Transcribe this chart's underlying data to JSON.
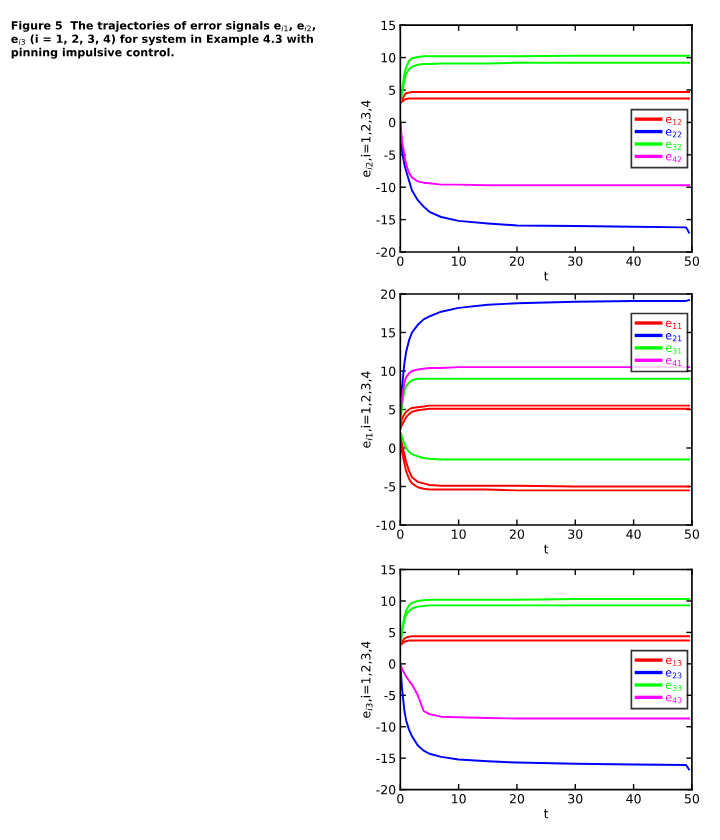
{
  "chart_data": [
    {
      "type": "line",
      "title": "Figure 5  The trajectories of error signals e$_{i1}$, e$_{i2}$,\ne$_{i3}$ (i = 1, 2, 3, 4) for system in Example 4.3 with\npinning impulsive control.",
      "xlabel": "t",
      "ylabel": "e$_{i2}$,i=1,2,3,4",
      "xlim": [
        0,
        50
      ],
      "xticks": [
        0,
        10,
        20,
        30,
        40,
        50
      ],
      "ylim": [
        -20,
        15
      ],
      "yticks": [
        -20,
        -15,
        -10,
        -5,
        0,
        5,
        10,
        15
      ],
      "legend": "right",
      "grid": false,
      "x": [
        0,
        0.3,
        0.7,
        1,
        1.5,
        2,
        3,
        4,
        5,
        7,
        10,
        15,
        20,
        30,
        40,
        49,
        49.5
      ],
      "series": [
        {
          "name": "e$_{12}$",
          "color": "#ff0000",
          "values": [
            3,
            3.5,
            4.2,
            4.5,
            4.6,
            4.7,
            4.7,
            4.7,
            4.7,
            4.7,
            4.7,
            4.7,
            4.7,
            4.7,
            4.7,
            4.7,
            4.7
          ]
        },
        {
          "name": "e$_{22}$",
          "color": "#0000ff",
          "values": [
            0,
            -4.5,
            -6.5,
            -7.5,
            -9,
            -10.5,
            -12,
            -13,
            -13.8,
            -14.6,
            -15.2,
            -15.6,
            -15.9,
            -16,
            -16.1,
            -16.2,
            -17
          ]
        },
        {
          "name": "e$_{32}$",
          "color": "#00ff00",
          "values": [
            3,
            5,
            7.5,
            8.5,
            9.5,
            9.9,
            10.1,
            10.2,
            10.2,
            10.2,
            10.2,
            10.2,
            10.2,
            10.3,
            10.3,
            10.3,
            10.3
          ]
        },
        {
          "name": "e$_{42}$",
          "color": "#ff00ff",
          "values": [
            0,
            -3,
            -5,
            -6.5,
            -7.8,
            -8.5,
            -9.1,
            -9.3,
            -9.4,
            -9.6,
            -9.6,
            -9.7,
            -9.7,
            -9.7,
            -9.7,
            -9.7,
            -9.7
          ]
        },
        {
          "color": "#ff0000",
          "values": [
            3,
            3.2,
            3.5,
            3.6,
            3.7,
            3.7,
            3.7,
            3.7,
            3.7,
            3.7,
            3.7,
            3.7,
            3.7,
            3.7,
            3.7,
            3.7,
            3.7
          ]
        },
        {
          "color": "#00ff00",
          "values": [
            3,
            4.5,
            6.5,
            7.5,
            8.2,
            8.6,
            8.9,
            9,
            9,
            9.1,
            9.1,
            9.1,
            9.2,
            9.2,
            9.2,
            9.2,
            9.2
          ]
        }
      ]
    },
    {
      "type": "line",
      "xlabel": "t",
      "ylabel": "e$_{i1}$,i=1,2,3,4",
      "xlim": [
        0,
        50
      ],
      "xticks": [
        0,
        10,
        20,
        30,
        40,
        50
      ],
      "ylim": [
        -10,
        20
      ],
      "yticks": [
        -10,
        -5,
        0,
        5,
        10,
        15,
        20
      ],
      "legend": "top right",
      "grid": false,
      "x": [
        0,
        0.3,
        0.7,
        1,
        1.5,
        2,
        3,
        4,
        5,
        7,
        10,
        15,
        20,
        30,
        40,
        49,
        49.5
      ],
      "series": [
        {
          "name": "e$_{11}$",
          "color": "#ff0000",
          "x": [
            0,
            0.3,
            0.7,
            1,
            1.5,
            2,
            3,
            4,
            5,
            7,
            10,
            15,
            20,
            30,
            40,
            49,
            49.5,
            null,
            0,
            0.3,
            0.7,
            1,
            1.5,
            2,
            3,
            4,
            5,
            7,
            10,
            15,
            20,
            30,
            40,
            49,
            49.5,
            null,
            0,
            0.3,
            0.7,
            1,
            1.5,
            2,
            3,
            4,
            5,
            7,
            10,
            15,
            20,
            30,
            40,
            49,
            49.5,
            null,
            0,
            0.3,
            0.7,
            1,
            1.5,
            2,
            3,
            4,
            5,
            7,
            10,
            15,
            20,
            30,
            40,
            49,
            49.5
          ],
          "values": [
            3,
            3.8,
            4.4,
            4.7,
            5,
            5.2,
            5.3,
            5.4,
            5.5,
            5.5,
            5.5,
            5.5,
            5.5,
            5.5,
            5.5,
            5.5,
            5.5,
            null,
            2.5,
            3,
            3.6,
            4,
            4.4,
            4.7,
            4.9,
            5,
            5.1,
            5.1,
            5.1,
            5.1,
            5.1,
            5.1,
            5.1,
            5.1,
            5.1,
            null,
            1,
            -0.5,
            -2,
            -3,
            -4,
            -4.6,
            -5.1,
            -5.3,
            -5.4,
            -5.4,
            -5.4,
            -5.4,
            -5.5,
            -5.5,
            -5.5,
            -5.5,
            -5.5,
            null,
            1.5,
            0.5,
            -0.8,
            -1.8,
            -3,
            -3.8,
            -4.4,
            -4.6,
            -4.8,
            -4.9,
            -4.9,
            -4.9,
            -4.9,
            -5,
            -5,
            -5,
            -5
          ]
        },
        {
          "name": "e$_{21}$",
          "color": "#0000ff",
          "values": [
            5,
            8,
            11,
            12.5,
            14,
            15,
            16,
            16.7,
            17.1,
            17.7,
            18.2,
            18.6,
            18.8,
            19,
            19.1,
            19.1,
            19.2
          ]
        },
        {
          "name": "e$_{31}$",
          "color": "#00ff00",
          "x": [
            0,
            0.3,
            0.7,
            1,
            1.5,
            2,
            3,
            4,
            5,
            7,
            10,
            15,
            20,
            30,
            40,
            49,
            49.5,
            null,
            0,
            0.3,
            0.7,
            1,
            1.5,
            2,
            3,
            4,
            5,
            7,
            10,
            15,
            20,
            30,
            40,
            49,
            49.5
          ],
          "values": [
            3,
            5.5,
            7.5,
            8,
            8.5,
            8.8,
            9,
            9,
            9,
            9,
            9,
            9,
            9,
            9,
            9,
            9,
            9,
            null,
            2,
            1.5,
            0.5,
            0,
            -0.5,
            -0.8,
            -1.1,
            -1.3,
            -1.4,
            -1.5,
            -1.5,
            -1.5,
            -1.5,
            -1.5,
            -1.5,
            -1.5,
            -1.5
          ]
        },
        {
          "name": "e$_{41}$",
          "color": "#ff00ff",
          "values": [
            4,
            6.5,
            8.5,
            9.2,
            9.7,
            10,
            10.2,
            10.3,
            10.4,
            10.4,
            10.5,
            10.5,
            10.5,
            10.5,
            10.5,
            10.5,
            10.5
          ]
        }
      ]
    },
    {
      "type": "line",
      "xlabel": "t",
      "ylabel": "e$_{i3}$,i=1,2,3,4",
      "xlim": [
        0,
        50
      ],
      "xticks": [
        0,
        10,
        20,
        30,
        40,
        50
      ],
      "ylim": [
        -20,
        15
      ],
      "yticks": [
        -20,
        -15,
        -10,
        -5,
        0,
        5,
        10,
        15
      ],
      "legend": "right",
      "grid": false,
      "x": [
        0,
        0.3,
        0.7,
        1,
        1.5,
        2,
        3,
        4,
        5,
        7,
        10,
        15,
        20,
        30,
        40,
        49,
        49.5
      ],
      "series": [
        {
          "name": "e$_{13}$",
          "color": "#ff0000",
          "values": [
            3,
            3.5,
            4,
            4.2,
            4.3,
            4.4,
            4.4,
            4.4,
            4.4,
            4.4,
            4.4,
            4.4,
            4.4,
            4.4,
            4.4,
            4.4,
            4.4
          ]
        },
        {
          "name": "e$_{23}$",
          "color": "#0000ff",
          "values": [
            0,
            -4,
            -7.5,
            -9,
            -10.5,
            -11.5,
            -13,
            -13.8,
            -14.3,
            -14.8,
            -15.2,
            -15.5,
            -15.7,
            -15.9,
            -16,
            -16.1,
            -16.8
          ]
        },
        {
          "name": "e$_{33}$",
          "color": "#00ff00",
          "values": [
            3,
            5.5,
            7.5,
            8.5,
            9.3,
            9.7,
            10,
            10.1,
            10.2,
            10.2,
            10.2,
            10.2,
            10.2,
            10.3,
            10.3,
            10.3,
            10.3
          ]
        },
        {
          "name": "e$_{43}$",
          "color": "#ff00ff",
          "values": [
            0,
            -0.8,
            -1.5,
            -2,
            -2.7,
            -3.3,
            -5,
            -7.5,
            -8,
            -8.4,
            -8.5,
            -8.6,
            -8.7,
            -8.7,
            -8.7,
            -8.7,
            -8.7
          ]
        },
        {
          "color": "#ff0000",
          "values": [
            3,
            3.2,
            3.5,
            3.6,
            3.7,
            3.7,
            3.7,
            3.7,
            3.7,
            3.7,
            3.7,
            3.7,
            3.7,
            3.7,
            3.7,
            3.7,
            3.7
          ]
        },
        {
          "color": "#00ff00",
          "values": [
            3,
            5,
            7,
            7.8,
            8.4,
            8.8,
            9.1,
            9.2,
            9.3,
            9.3,
            9.3,
            9.3,
            9.3,
            9.3,
            9.3,
            9.3,
            9.3
          ]
        }
      ]
    }
  ]
}
